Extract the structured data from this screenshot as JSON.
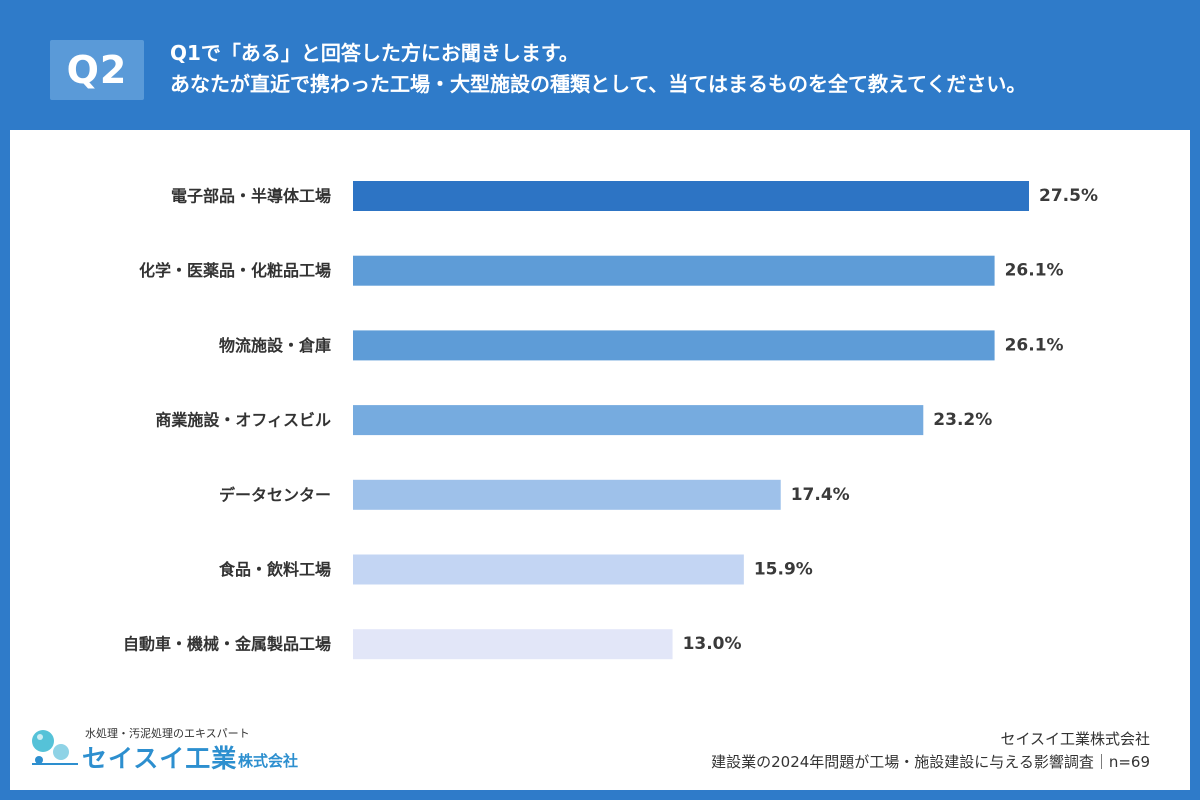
{
  "header": {
    "badge": "Q2",
    "question_line1": "Q1で「ある」と回答した方にお聞きします。",
    "question_line2": "あなたが直近で携わった工場・大型施設の種類として、当てはまるものを全て教えてください。"
  },
  "chart_data": {
    "type": "bar",
    "orientation": "horizontal",
    "categories": [
      "電子部品・半導体工場",
      "化学・医薬品・化粧品工場",
      "物流施設・倉庫",
      "商業施設・オフィスビル",
      "データセンター",
      "食品・飲料工場",
      "自動車・機械・金属製品工場"
    ],
    "values": [
      27.5,
      26.1,
      26.1,
      23.2,
      17.4,
      15.9,
      13.0
    ],
    "value_labels": [
      "27.5%",
      "26.1%",
      "26.1%",
      "23.2%",
      "17.4%",
      "15.9%",
      "13.0%"
    ],
    "colors": [
      "#2d74c4",
      "#5e9cd7",
      "#5e9cd7",
      "#76abdf",
      "#9ec1ea",
      "#c3d5f3",
      "#e2e6f8"
    ],
    "unit": "%",
    "xlim": [
      0,
      27.5
    ]
  },
  "logo": {
    "tagline": "水処理・汚泥処理のエキスパート",
    "name": "セイスイ工業",
    "suffix": "株式会社"
  },
  "footer": {
    "company": "セイスイ工業株式会社",
    "survey": "建設業の2024年問題が工場・施設建設に与える影響調査｜n=69"
  }
}
